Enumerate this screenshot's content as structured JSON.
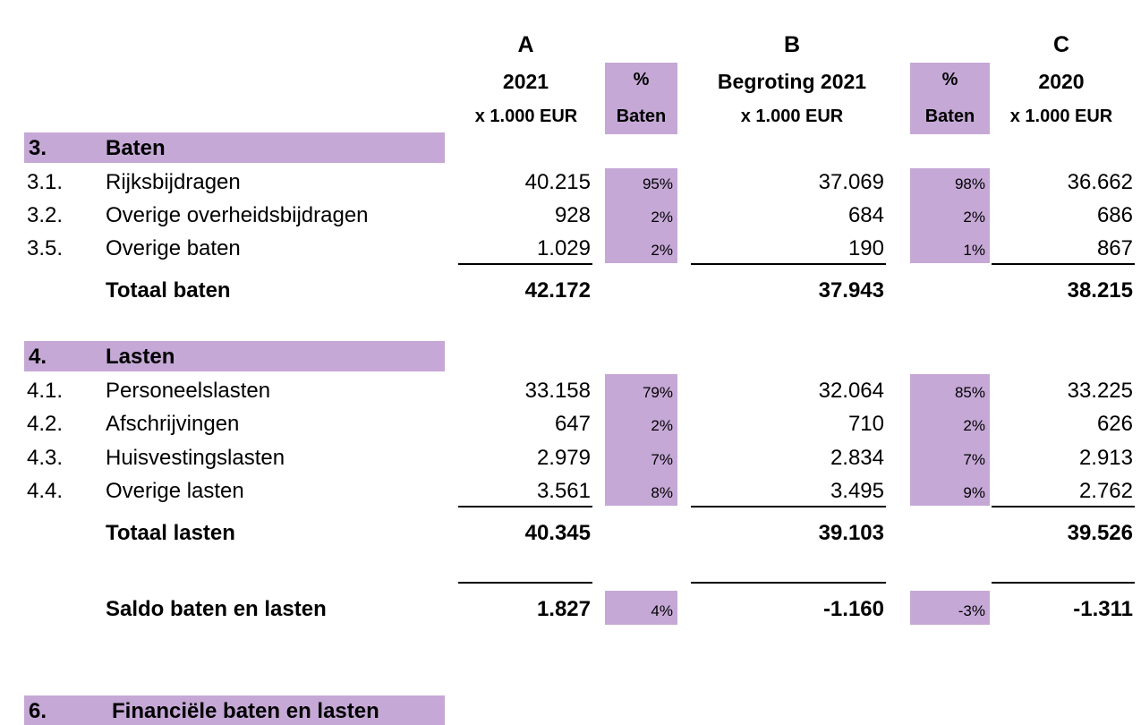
{
  "columns": {
    "a": {
      "letter": "A",
      "year": "2021",
      "unit": "x 1.000 EUR"
    },
    "a_pct": {
      "top": "%",
      "bottom": "Baten"
    },
    "b": {
      "letter": "B",
      "year": "Begroting 2021",
      "unit": "x 1.000 EUR"
    },
    "b_pct": {
      "top": "%",
      "bottom": "Baten"
    },
    "c": {
      "letter": "C",
      "year": "2020",
      "unit": "x 1.000 EUR"
    }
  },
  "baten": {
    "code": "3.",
    "title": "Baten",
    "rows": [
      {
        "code": "3.1.",
        "label": "Rijksbijdragen",
        "a": "40.215",
        "a_pct": "95%",
        "b": "37.069",
        "b_pct": "98%",
        "c": "36.662"
      },
      {
        "code": "3.2.",
        "label": "Overige overheidsbijdragen",
        "a": "928",
        "a_pct": "2%",
        "b": "684",
        "b_pct": "2%",
        "c": "686"
      },
      {
        "code": "3.5.",
        "label": "Overige baten",
        "a": "1.029",
        "a_pct": "2%",
        "b": "190",
        "b_pct": "1%",
        "c": "867"
      }
    ],
    "total": {
      "label": "Totaal baten",
      "a": "42.172",
      "b": "37.943",
      "c": "38.215"
    }
  },
  "lasten": {
    "code": "4.",
    "title": "Lasten",
    "rows": [
      {
        "code": "4.1.",
        "label": "Personeelslasten",
        "a": "33.158",
        "a_pct": "79%",
        "b": "32.064",
        "b_pct": "85%",
        "c": "33.225"
      },
      {
        "code": "4.2.",
        "label": "Afschrijvingen",
        "a": "647",
        "a_pct": "2%",
        "b": "710",
        "b_pct": "2%",
        "c": "626"
      },
      {
        "code": "4.3.",
        "label": "Huisvestingslasten",
        "a": "2.979",
        "a_pct": "7%",
        "b": "2.834",
        "b_pct": "7%",
        "c": "2.913"
      },
      {
        "code": "4.4.",
        "label": "Overige lasten",
        "a": "3.561",
        "a_pct": "8%",
        "b": "3.495",
        "b_pct": "9%",
        "c": "2.762"
      }
    ],
    "total": {
      "label": "Totaal lasten",
      "a": "40.345",
      "b": "39.103",
      "c": "39.526"
    }
  },
  "saldo": {
    "label": "Saldo baten en lasten",
    "a": "1.827",
    "a_pct": "4%",
    "b": "-1.160",
    "b_pct": "-3%",
    "c": "-1.311"
  },
  "financieel": {
    "code": "6.",
    "title": "Financiële baten en lasten"
  },
  "colors": {
    "shade": "#c5a8d6",
    "text": "#000000"
  }
}
